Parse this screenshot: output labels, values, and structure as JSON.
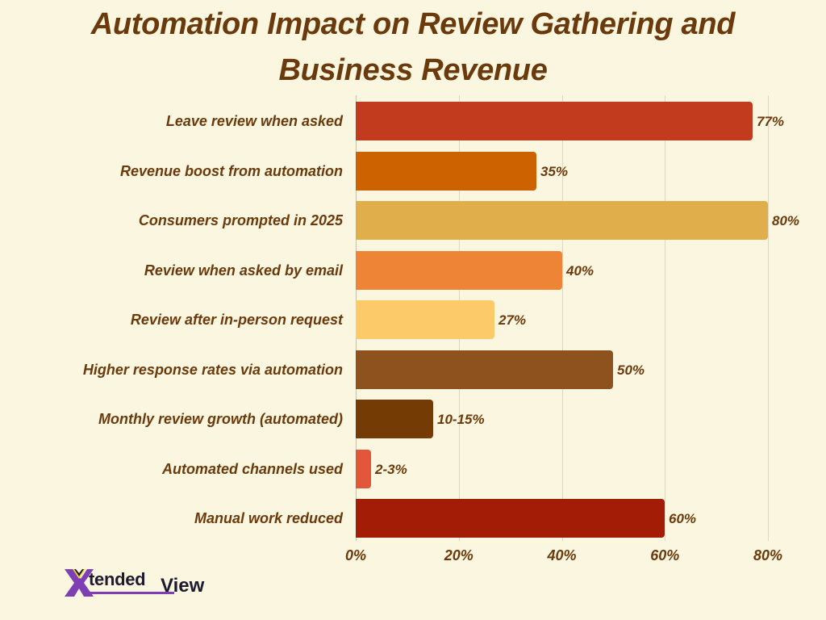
{
  "chart_data": {
    "type": "bar",
    "orientation": "horizontal",
    "title": "Automation Impact on Review Gathering and Business Revenue",
    "title_lines": [
      "Automation Impact on Review Gathering and",
      "Business Revenue"
    ],
    "xlabel": "",
    "ylabel": "",
    "xlim": [
      0,
      87
    ],
    "grid": true,
    "legend": null,
    "x_ticks": [
      "0%",
      "20%",
      "40%",
      "60%",
      "80%"
    ],
    "x_tick_values": [
      0,
      20,
      40,
      60,
      80
    ],
    "categories": [
      "Leave review when asked",
      "Revenue boost from automation",
      "Consumers prompted in 2025",
      "Review when asked by email",
      "Review after in-person request",
      "Higher response rates via automation",
      "Monthly review growth (automated)",
      "Automated channels used",
      "Manual work reduced"
    ],
    "values": [
      77,
      35,
      80,
      40,
      27,
      50,
      15,
      3,
      60
    ],
    "value_labels": [
      "77%",
      "35%",
      "80%",
      "40%",
      "27%",
      "50%",
      "10-15%",
      "2-3%",
      "60%"
    ],
    "colors": [
      "#C23B1E",
      "#CC6200",
      "#E0AE4A",
      "#EE8436",
      "#FCCA68",
      "#8E521E",
      "#743B05",
      "#E2573A",
      "#A21C06"
    ]
  },
  "branding": {
    "logo_x": "X",
    "logo_text_1": "tended",
    "logo_text_2": "View",
    "colors": {
      "purple": "#7E3FB5",
      "yellow": "#F2DC2E",
      "dark": "#1E1B2E"
    }
  },
  "theme": {
    "background": "#FAF6E0",
    "text": "#6B3A0C",
    "grid": "#DCD6C2"
  }
}
